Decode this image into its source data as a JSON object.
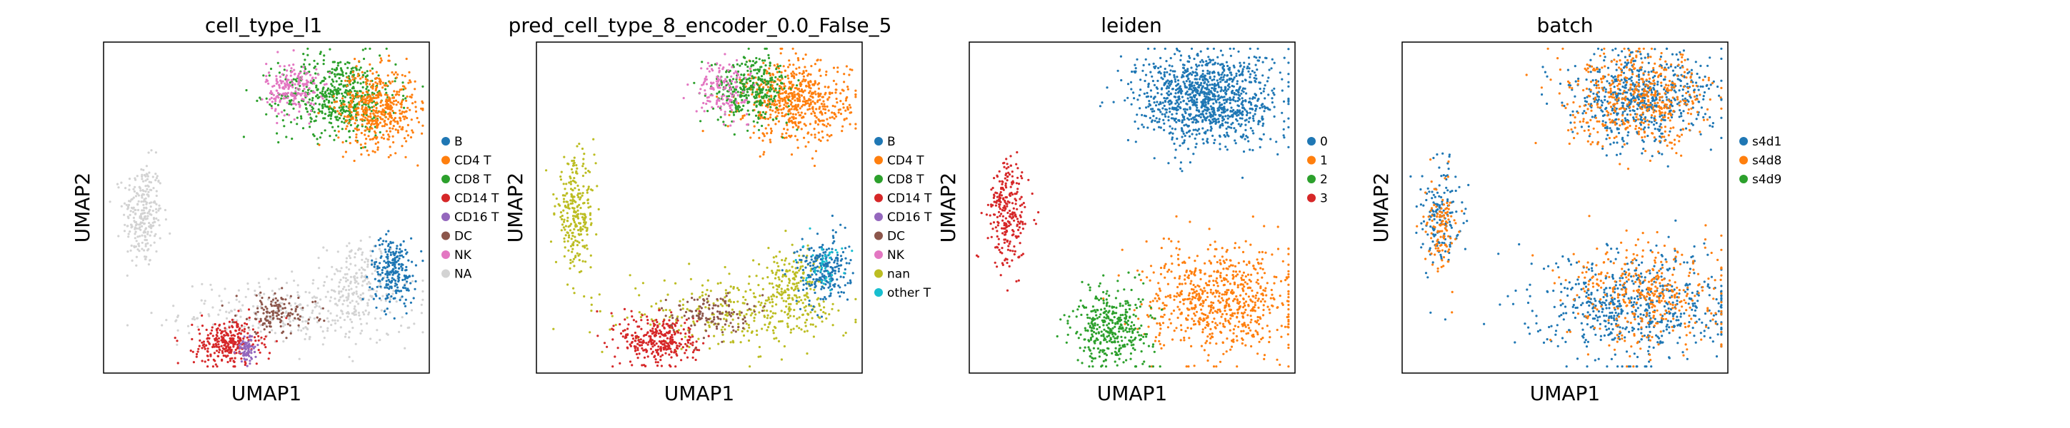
{
  "chart_data": [
    {
      "type": "scatter",
      "title": "cell_type_l1",
      "xlabel": "UMAP1",
      "ylabel": "UMAP2",
      "legend_position": "right",
      "categories": [
        {
          "name": "B",
          "color": "#1f77b4"
        },
        {
          "name": "CD4 T",
          "color": "#ff7f0e"
        },
        {
          "name": "CD8 T",
          "color": "#2ca02c"
        },
        {
          "name": "CD14 T",
          "color": "#d62728"
        },
        {
          "name": "CD16 T",
          "color": "#9467bd"
        },
        {
          "name": "DC",
          "color": "#8c564b"
        },
        {
          "name": "NK",
          "color": "#e377c2"
        },
        {
          "name": "NA",
          "color": "#d3d3d3"
        }
      ],
      "clusters": [
        {
          "label": "NA",
          "x": 0.12,
          "y": 0.48,
          "sx": 0.03,
          "sy": 0.08,
          "n": 260
        },
        {
          "label": "NA",
          "x": 0.6,
          "y": 0.18,
          "sx": 0.18,
          "sy": 0.05,
          "n": 320
        },
        {
          "label": "NA",
          "x": 0.78,
          "y": 0.28,
          "sx": 0.05,
          "sy": 0.06,
          "n": 160
        },
        {
          "label": "CD8 T",
          "x": 0.72,
          "y": 0.84,
          "sx": 0.09,
          "sy": 0.06,
          "n": 560
        },
        {
          "label": "CD4 T",
          "x": 0.84,
          "y": 0.8,
          "sx": 0.06,
          "sy": 0.06,
          "n": 480
        },
        {
          "label": "NK",
          "x": 0.58,
          "y": 0.86,
          "sx": 0.04,
          "sy": 0.04,
          "n": 200
        },
        {
          "label": "B",
          "x": 0.89,
          "y": 0.31,
          "sx": 0.035,
          "sy": 0.05,
          "n": 240
        },
        {
          "label": "CD14 T",
          "x": 0.38,
          "y": 0.09,
          "sx": 0.05,
          "sy": 0.035,
          "n": 280
        },
        {
          "label": "CD16 T",
          "x": 0.44,
          "y": 0.07,
          "sx": 0.015,
          "sy": 0.02,
          "n": 80
        },
        {
          "label": "DC",
          "x": 0.53,
          "y": 0.18,
          "sx": 0.06,
          "sy": 0.03,
          "n": 130
        }
      ]
    },
    {
      "type": "scatter",
      "title": "pred_cell_type_8_encoder_0.0_False_5",
      "xlabel": "UMAP1",
      "ylabel": "UMAP2",
      "legend_position": "right",
      "categories": [
        {
          "name": "B",
          "color": "#1f77b4"
        },
        {
          "name": "CD4 T",
          "color": "#ff7f0e"
        },
        {
          "name": "CD8 T",
          "color": "#2ca02c"
        },
        {
          "name": "CD14 T",
          "color": "#d62728"
        },
        {
          "name": "CD16 T",
          "color": "#9467bd"
        },
        {
          "name": "DC",
          "color": "#8c564b"
        },
        {
          "name": "NK",
          "color": "#e377c2"
        },
        {
          "name": "nan",
          "color": "#bcbd22"
        },
        {
          "name": "other T",
          "color": "#17becf"
        }
      ],
      "clusters": [
        {
          "label": "nan",
          "x": 0.12,
          "y": 0.48,
          "sx": 0.03,
          "sy": 0.08,
          "n": 260
        },
        {
          "label": "nan",
          "x": 0.62,
          "y": 0.18,
          "sx": 0.17,
          "sy": 0.05,
          "n": 300
        },
        {
          "label": "nan",
          "x": 0.78,
          "y": 0.27,
          "sx": 0.05,
          "sy": 0.06,
          "n": 180
        },
        {
          "label": "CD4 T",
          "x": 0.8,
          "y": 0.82,
          "sx": 0.08,
          "sy": 0.06,
          "n": 600
        },
        {
          "label": "CD8 T",
          "x": 0.66,
          "y": 0.86,
          "sx": 0.06,
          "sy": 0.05,
          "n": 340
        },
        {
          "label": "NK",
          "x": 0.57,
          "y": 0.86,
          "sx": 0.04,
          "sy": 0.04,
          "n": 150
        },
        {
          "label": "B",
          "x": 0.88,
          "y": 0.31,
          "sx": 0.04,
          "sy": 0.05,
          "n": 240
        },
        {
          "label": "CD14 T",
          "x": 0.38,
          "y": 0.1,
          "sx": 0.06,
          "sy": 0.04,
          "n": 320
        },
        {
          "label": "DC",
          "x": 0.53,
          "y": 0.18,
          "sx": 0.06,
          "sy": 0.03,
          "n": 120
        },
        {
          "label": "other T",
          "x": 0.88,
          "y": 0.34,
          "sx": 0.03,
          "sy": 0.04,
          "n": 40
        }
      ]
    },
    {
      "type": "scatter",
      "title": "leiden",
      "xlabel": "UMAP1",
      "ylabel": "UMAP2",
      "legend_position": "right",
      "categories": [
        {
          "name": "0",
          "color": "#1f77b4"
        },
        {
          "name": "1",
          "color": "#ff7f0e"
        },
        {
          "name": "2",
          "color": "#2ca02c"
        },
        {
          "name": "3",
          "color": "#d62728"
        }
      ],
      "clusters": [
        {
          "label": "0",
          "x": 0.73,
          "y": 0.83,
          "sx": 0.11,
          "sy": 0.07,
          "n": 1100
        },
        {
          "label": "1",
          "x": 0.77,
          "y": 0.22,
          "sx": 0.11,
          "sy": 0.08,
          "n": 700
        },
        {
          "label": "2",
          "x": 0.44,
          "y": 0.14,
          "sx": 0.06,
          "sy": 0.06,
          "n": 380
        },
        {
          "label": "3",
          "x": 0.12,
          "y": 0.48,
          "sx": 0.03,
          "sy": 0.08,
          "n": 260
        }
      ]
    },
    {
      "type": "scatter",
      "title": "batch",
      "xlabel": "UMAP1",
      "ylabel": "UMAP2",
      "legend_position": "right",
      "categories": [
        {
          "name": "s4d1",
          "color": "#1f77b4"
        },
        {
          "name": "s4d8",
          "color": "#ff7f0e"
        },
        {
          "name": "s4d9",
          "color": "#2ca02c"
        }
      ],
      "clusters": [
        {
          "label": "s4d1",
          "x": 0.73,
          "y": 0.83,
          "sx": 0.11,
          "sy": 0.07,
          "n": 600
        },
        {
          "label": "s4d8",
          "x": 0.73,
          "y": 0.83,
          "sx": 0.11,
          "sy": 0.07,
          "n": 500
        },
        {
          "label": "s4d1",
          "x": 0.72,
          "y": 0.2,
          "sx": 0.15,
          "sy": 0.08,
          "n": 600
        },
        {
          "label": "s4d8",
          "x": 0.76,
          "y": 0.24,
          "sx": 0.12,
          "sy": 0.08,
          "n": 380
        },
        {
          "label": "s4d1",
          "x": 0.12,
          "y": 0.48,
          "sx": 0.03,
          "sy": 0.08,
          "n": 160
        },
        {
          "label": "s4d8",
          "x": 0.12,
          "y": 0.44,
          "sx": 0.025,
          "sy": 0.07,
          "n": 110
        }
      ]
    }
  ]
}
